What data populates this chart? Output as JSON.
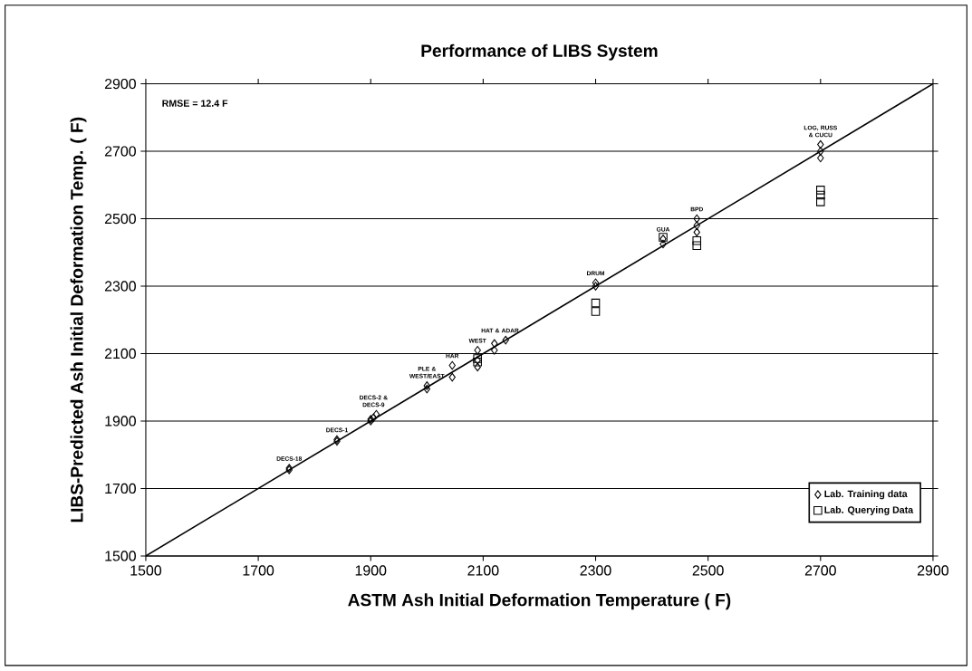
{
  "chart_data": {
    "type": "scatter",
    "title": "Performance of LIBS System",
    "xlabel": "ASTM Ash Initial Deformation Temperature ( F)",
    "ylabel": "LIBS-Predicted Ash Initial Deformation Temp. ( F)",
    "xlim": [
      1500,
      2900
    ],
    "ylim": [
      1500,
      2900
    ],
    "xticks": [
      1500,
      1700,
      1900,
      2100,
      2300,
      2500,
      2700,
      2900
    ],
    "yticks": [
      1500,
      1700,
      1900,
      2100,
      2300,
      2500,
      2700,
      2900
    ],
    "grid": "y",
    "legend": "bottom right",
    "series": [
      {
        "name": "Lab. Training data",
        "color": "#000000",
        "marker": "diamond",
        "x": [
          1755,
          1755,
          1840,
          1840,
          1900,
          1905,
          1910,
          1900,
          2000,
          2000,
          2045,
          2045,
          2090,
          2090,
          2090,
          2120,
          2120,
          2140,
          2300,
          2300,
          2420,
          2420,
          2480,
          2480,
          2480,
          2700,
          2700,
          2700
        ],
        "values": [
          1760,
          1755,
          1845,
          1840,
          1900,
          1910,
          1920,
          1905,
          1995,
          2005,
          2030,
          2065,
          2060,
          2080,
          2110,
          2110,
          2130,
          2140,
          2300,
          2310,
          2425,
          2440,
          2460,
          2480,
          2500,
          2680,
          2700,
          2720
        ]
      },
      {
        "name": "Lab. Querying Data",
        "color": "#000000",
        "marker": "square",
        "x": [
          2090,
          2090,
          2300,
          2300,
          2420,
          2480,
          2480,
          2700,
          2700,
          2700
        ],
        "values": [
          2075,
          2085,
          2225,
          2250,
          2445,
          2420,
          2435,
          2550,
          2570,
          2585
        ]
      },
      {
        "type": "line",
        "color": "#000000",
        "marker": "none",
        "x": [
          1500,
          2900
        ],
        "values": [
          1500,
          2900
        ]
      }
    ],
    "annotations": [
      "RMSE =   12.4  F",
      {
        "text": "DECS-18",
        "x": 1755,
        "y": 1760
      },
      {
        "text": "DECS-1",
        "x": 1840,
        "y": 1845
      },
      {
        "text": "DECS-2 & DECS-9",
        "x": 1905,
        "y": 1920
      },
      {
        "text": "PLE & WEST/EAST",
        "x": 2000,
        "y": 2005
      },
      {
        "text": "HAR",
        "x": 2045,
        "y": 2065
      },
      {
        "text": "WEST",
        "x": 2090,
        "y": 2110
      },
      {
        "text": "HAT & ADAR",
        "x": 2130,
        "y": 2140
      },
      {
        "text": "DRUM",
        "x": 2300,
        "y": 2310
      },
      {
        "text": "GUA",
        "x": 2420,
        "y": 2440
      },
      {
        "text": "BPD",
        "x": 2480,
        "y": 2500
      },
      {
        "text": "LOG, RUSS & CUCU",
        "x": 2700,
        "y": 2720
      }
    ]
  }
}
